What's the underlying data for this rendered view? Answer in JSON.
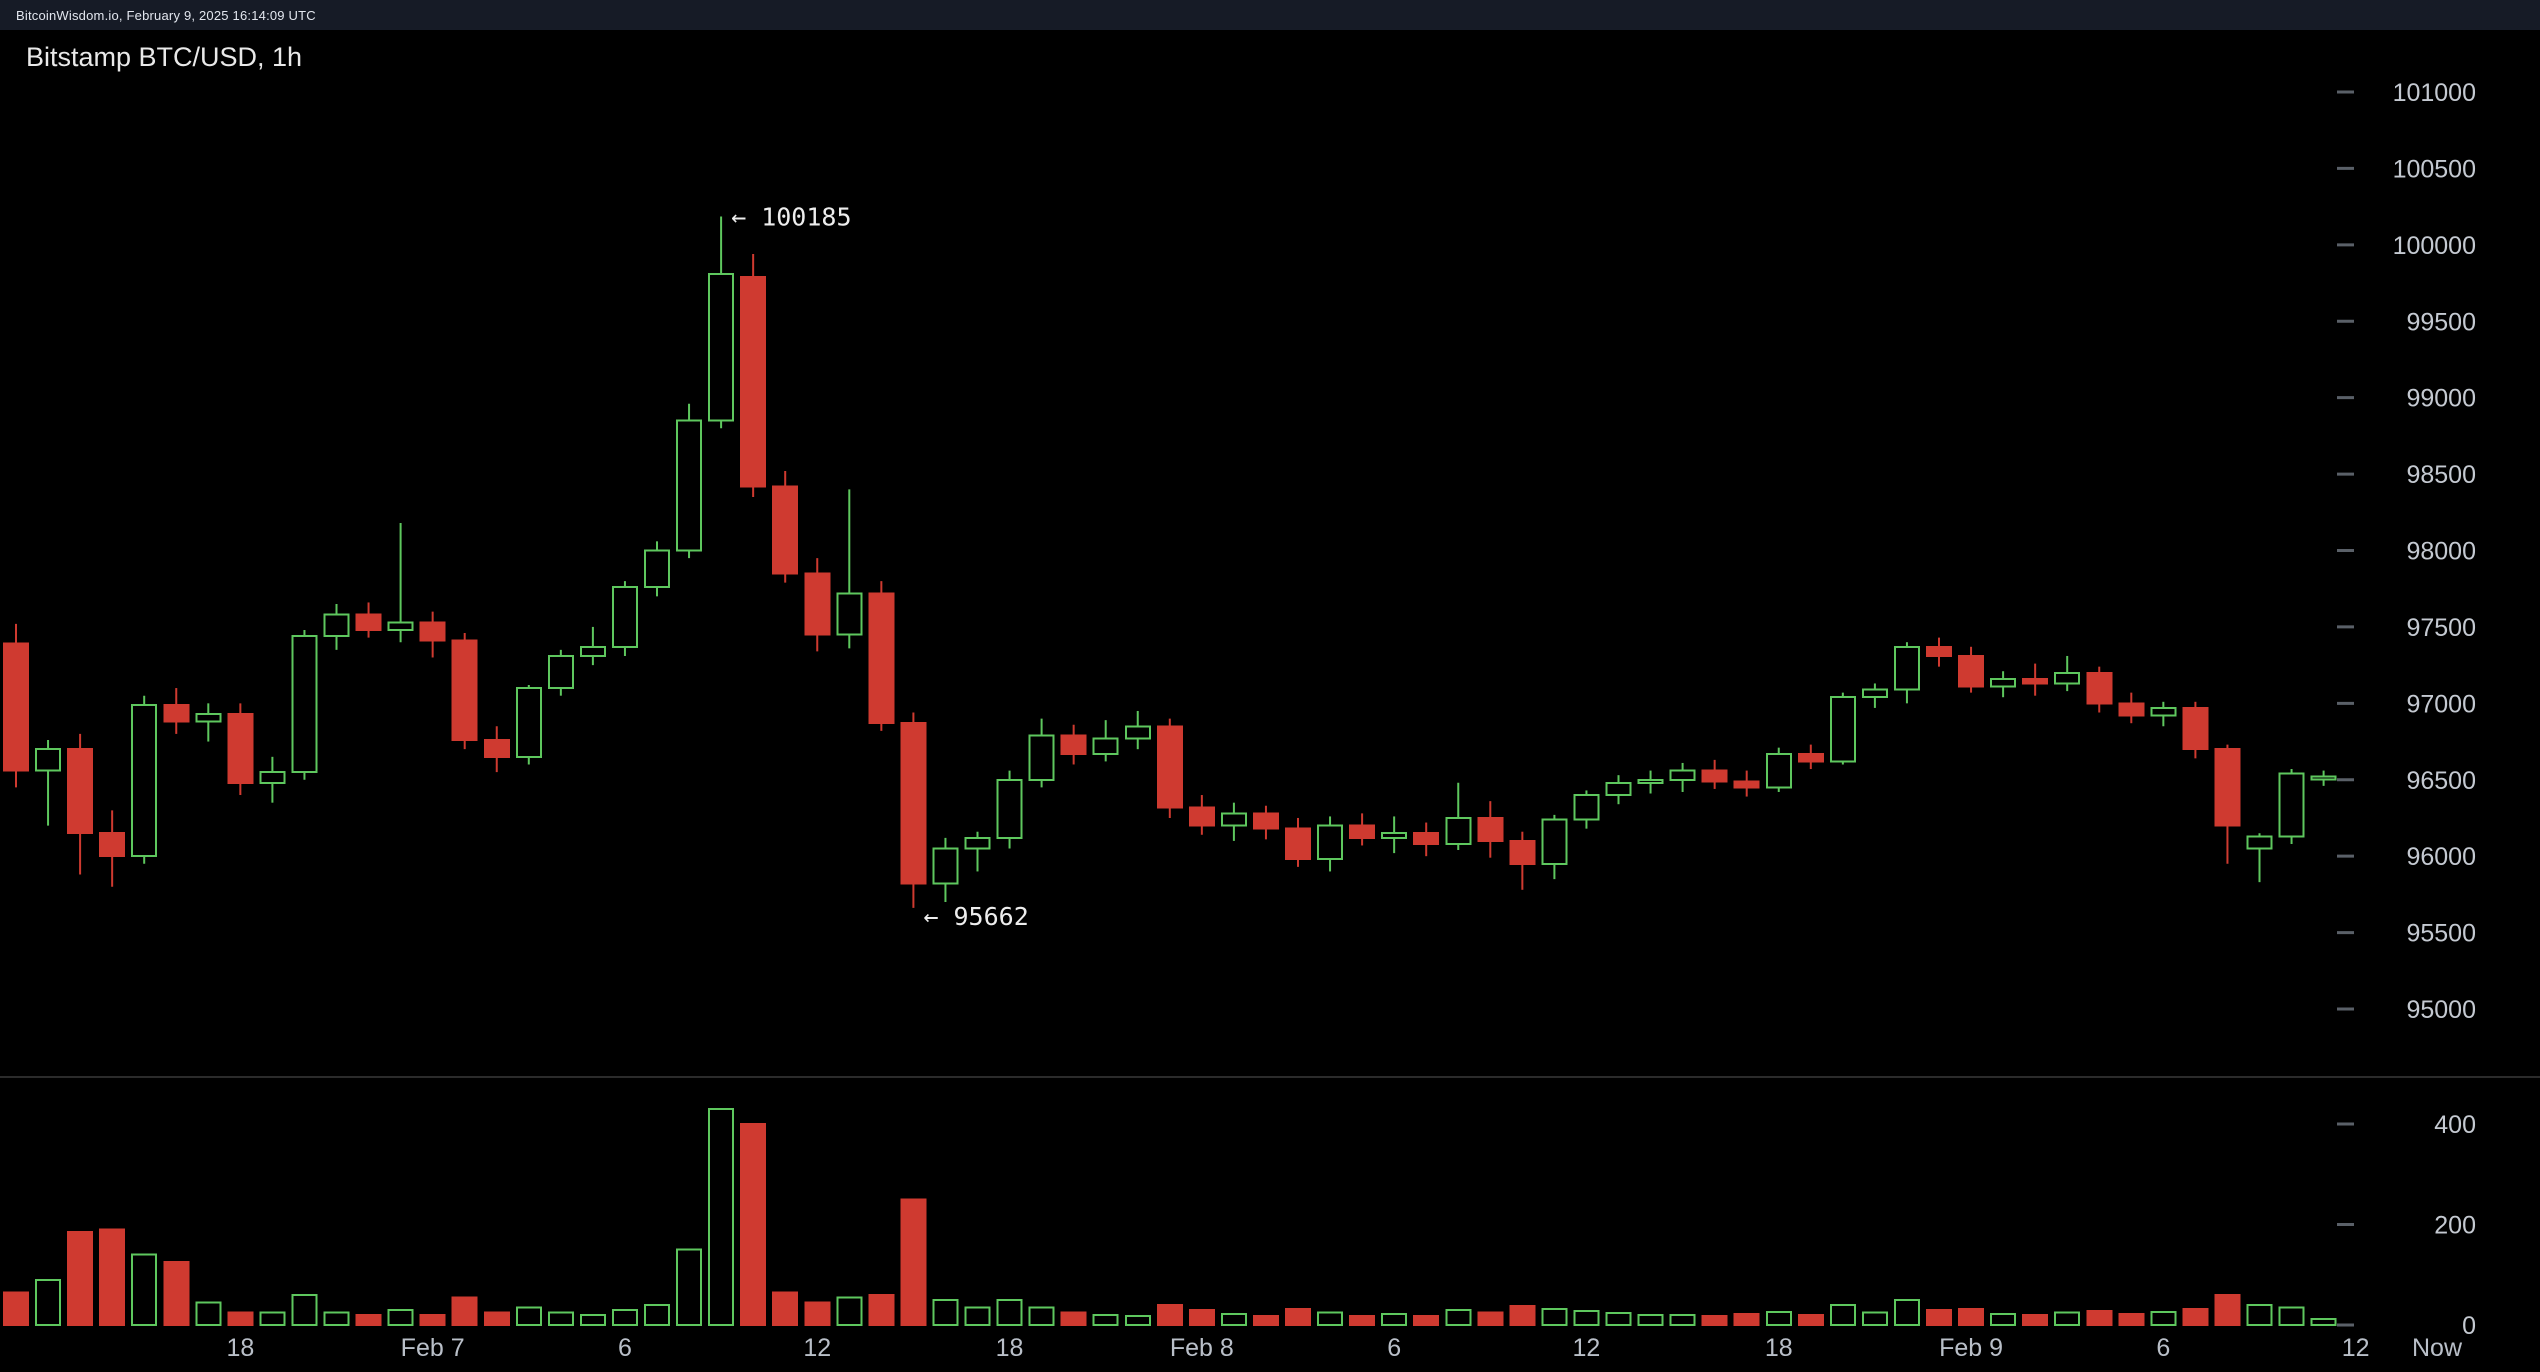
{
  "topbar": {
    "text": "BitcoinWisdom.io, February 9, 2025 16:14:09 UTC"
  },
  "chart": {
    "title": "Bitstamp BTC/USD, 1h"
  },
  "colors": {
    "background": "#000000",
    "topbar_bg": "#161b26",
    "up": "#5ec75e",
    "down": "#cf3a30",
    "axis_text": "#c4c9d1",
    "time_text": "#b9bfc8",
    "tick": "#5a6068",
    "separator": "#2b2b2b",
    "annotation_text": "#ededed",
    "title_text": "#e9e9e9"
  },
  "price_axis": {
    "labels": [
      101000,
      100500,
      100000,
      99500,
      99000,
      98500,
      98000,
      97500,
      97000,
      96500,
      96000,
      95500,
      95000
    ]
  },
  "volume_axis": {
    "labels": [
      400,
      200,
      0
    ]
  },
  "time_axis": {
    "ticks": [
      {
        "label": "18",
        "index": 7
      },
      {
        "label": "Feb 7",
        "index": 13
      },
      {
        "label": "6",
        "index": 19
      },
      {
        "label": "12",
        "index": 25
      },
      {
        "label": "18",
        "index": 31
      },
      {
        "label": "Feb 8",
        "index": 37
      },
      {
        "label": "6",
        "index": 43
      },
      {
        "label": "12",
        "index": 49
      },
      {
        "label": "18",
        "index": 55
      },
      {
        "label": "Feb 9",
        "index": 61
      },
      {
        "label": "6",
        "index": 67
      },
      {
        "label": "12",
        "index": 73
      }
    ],
    "now_label": "Now"
  },
  "annotations": [
    {
      "text": "← 100185",
      "price": 100185,
      "candle_index": 22,
      "position": "above"
    },
    {
      "text": "← 95662",
      "price": 95662,
      "candle_index": 28,
      "position": "below"
    }
  ],
  "chart_data": {
    "type": "candlestick",
    "title": "Bitstamp BTC/USD, 1h",
    "exchange": "Bitstamp",
    "pair": "BTC/USD",
    "interval": "1h",
    "price_range": [
      94800,
      101400
    ],
    "volume_range": [
      0,
      450
    ],
    "high_annotation": 100185,
    "low_annotation": 95662,
    "columns": [
      "time",
      "open",
      "high",
      "low",
      "close",
      "volume"
    ],
    "rows": [
      [
        "Feb 6 11:00",
        97390,
        97520,
        96450,
        96560,
        65
      ],
      [
        "Feb 6 12:00",
        96560,
        96760,
        96200,
        96700,
        90
      ],
      [
        "Feb 6 13:00",
        96700,
        96800,
        95880,
        96150,
        185
      ],
      [
        "Feb 6 14:00",
        96150,
        96300,
        95800,
        96000,
        190
      ],
      [
        "Feb 6 15:00",
        96000,
        97050,
        95950,
        96990,
        140
      ],
      [
        "Feb 6 16:00",
        96990,
        97100,
        96800,
        96880,
        125
      ],
      [
        "Feb 6 17:00",
        96880,
        97000,
        96750,
        96930,
        45
      ],
      [
        "Feb 6 18:00",
        96930,
        97000,
        96400,
        96480,
        25
      ],
      [
        "Feb 6 19:00",
        96480,
        96650,
        96350,
        96550,
        25
      ],
      [
        "Feb 6 20:00",
        96550,
        97480,
        96500,
        97440,
        60
      ],
      [
        "Feb 6 21:00",
        97440,
        97650,
        97350,
        97580,
        25
      ],
      [
        "Feb 6 22:00",
        97580,
        97660,
        97430,
        97480,
        20
      ],
      [
        "Feb 6 23:00",
        97480,
        98180,
        97400,
        97530,
        30
      ],
      [
        "Feb 7 00:00",
        97530,
        97600,
        97300,
        97410,
        20
      ],
      [
        "Feb 7 01:00",
        97410,
        97460,
        96700,
        96760,
        55
      ],
      [
        "Feb 7 02:00",
        96760,
        96850,
        96550,
        96650,
        25
      ],
      [
        "Feb 7 03:00",
        96650,
        97120,
        96600,
        97100,
        35
      ],
      [
        "Feb 7 04:00",
        97100,
        97350,
        97050,
        97310,
        25
      ],
      [
        "Feb 7 05:00",
        97310,
        97500,
        97250,
        97370,
        20
      ],
      [
        "Feb 7 06:00",
        97370,
        97800,
        97310,
        97760,
        30
      ],
      [
        "Feb 7 07:00",
        97760,
        98060,
        97700,
        98000,
        40
      ],
      [
        "Feb 7 08:00",
        98000,
        98960,
        97950,
        98850,
        150
      ],
      [
        "Feb 7 09:00",
        98850,
        100185,
        98800,
        99810,
        430
      ],
      [
        "Feb 7 10:00",
        99790,
        99940,
        98350,
        98420,
        400
      ],
      [
        "Feb 7 11:00",
        98420,
        98520,
        97790,
        97850,
        65
      ],
      [
        "Feb 7 12:00",
        97850,
        97950,
        97340,
        97450,
        45
      ],
      [
        "Feb 7 13:00",
        97450,
        98400,
        97360,
        97720,
        55
      ],
      [
        "Feb 7 14:00",
        97720,
        97800,
        96820,
        96870,
        60
      ],
      [
        "Feb 7 15:00",
        96870,
        96940,
        95662,
        95820,
        250
      ],
      [
        "Feb 7 16:00",
        95820,
        96120,
        95700,
        96050,
        50
      ],
      [
        "Feb 7 17:00",
        96050,
        96160,
        95900,
        96120,
        35
      ],
      [
        "Feb 7 18:00",
        96120,
        96560,
        96050,
        96500,
        50
      ],
      [
        "Feb 7 19:00",
        96500,
        96900,
        96450,
        96790,
        35
      ],
      [
        "Feb 7 20:00",
        96790,
        96860,
        96600,
        96670,
        25
      ],
      [
        "Feb 7 21:00",
        96670,
        96890,
        96620,
        96770,
        20
      ],
      [
        "Feb 7 22:00",
        96770,
        96950,
        96700,
        96850,
        18
      ],
      [
        "Feb 7 23:00",
        96850,
        96900,
        96250,
        96320,
        40
      ],
      [
        "Feb 8 00:00",
        96320,
        96400,
        96140,
        96200,
        30
      ],
      [
        "Feb 8 01:00",
        96200,
        96350,
        96100,
        96280,
        22
      ],
      [
        "Feb 8 02:00",
        96280,
        96330,
        96110,
        96180,
        18
      ],
      [
        "Feb 8 03:00",
        96180,
        96250,
        95930,
        95980,
        32
      ],
      [
        "Feb 8 04:00",
        95980,
        96260,
        95900,
        96200,
        25
      ],
      [
        "Feb 8 05:00",
        96200,
        96280,
        96070,
        96120,
        18
      ],
      [
        "Feb 8 06:00",
        96120,
        96260,
        96020,
        96150,
        22
      ],
      [
        "Feb 8 07:00",
        96150,
        96220,
        96000,
        96080,
        18
      ],
      [
        "Feb 8 08:00",
        96080,
        96480,
        96040,
        96250,
        30
      ],
      [
        "Feb 8 09:00",
        96250,
        96360,
        95990,
        96100,
        25
      ],
      [
        "Feb 8 10:00",
        96100,
        96160,
        95780,
        95950,
        38
      ],
      [
        "Feb 8 11:00",
        95950,
        96270,
        95850,
        96240,
        32
      ],
      [
        "Feb 8 12:00",
        96240,
        96430,
        96180,
        96400,
        28
      ],
      [
        "Feb 8 13:00",
        96400,
        96530,
        96340,
        96480,
        24
      ],
      [
        "Feb 8 14:00",
        96480,
        96560,
        96410,
        96500,
        20
      ],
      [
        "Feb 8 15:00",
        96500,
        96610,
        96420,
        96560,
        20
      ],
      [
        "Feb 8 16:00",
        96560,
        96630,
        96440,
        96490,
        18
      ],
      [
        "Feb 8 17:00",
        96490,
        96560,
        96390,
        96450,
        22
      ],
      [
        "Feb 8 18:00",
        96450,
        96710,
        96420,
        96670,
        26
      ],
      [
        "Feb 8 19:00",
        96670,
        96730,
        96570,
        96620,
        20
      ],
      [
        "Feb 8 20:00",
        96620,
        97070,
        96600,
        97040,
        40
      ],
      [
        "Feb 8 21:00",
        97040,
        97130,
        96970,
        97090,
        25
      ],
      [
        "Feb 8 22:00",
        97090,
        97400,
        97000,
        97370,
        50
      ],
      [
        "Feb 8 23:00",
        97370,
        97430,
        97240,
        97310,
        30
      ],
      [
        "Feb 9 00:00",
        97310,
        97370,
        97070,
        97110,
        32
      ],
      [
        "Feb 9 01:00",
        97110,
        97210,
        97040,
        97160,
        22
      ],
      [
        "Feb 9 02:00",
        97160,
        97260,
        97050,
        97130,
        20
      ],
      [
        "Feb 9 03:00",
        97130,
        97310,
        97080,
        97200,
        25
      ],
      [
        "Feb 9 04:00",
        97200,
        97240,
        96940,
        97000,
        28
      ],
      [
        "Feb 9 05:00",
        97000,
        97070,
        96870,
        96920,
        22
      ],
      [
        "Feb 9 06:00",
        96920,
        97010,
        96850,
        96970,
        26
      ],
      [
        "Feb 9 07:00",
        96970,
        97010,
        96640,
        96700,
        32
      ],
      [
        "Feb 9 08:00",
        96700,
        96730,
        95950,
        96200,
        60
      ],
      [
        "Feb 9 09:00",
        96050,
        96150,
        95830,
        96130,
        40
      ],
      [
        "Feb 9 10:00",
        96130,
        96570,
        96080,
        96540,
        35
      ],
      [
        "Feb 9 11:00",
        96510,
        96560,
        96460,
        96520,
        12
      ]
    ]
  }
}
